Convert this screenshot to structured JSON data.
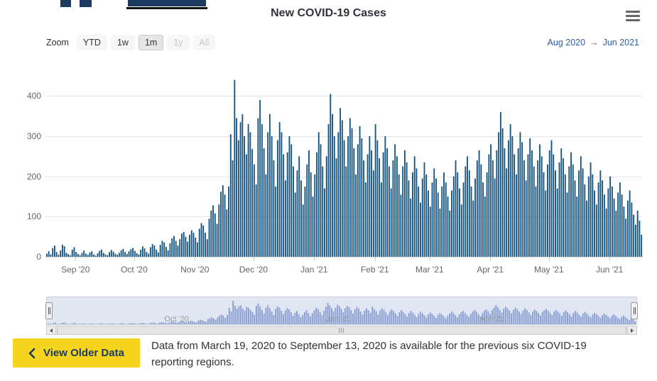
{
  "page": {
    "title": "New COVID-19 Cases"
  },
  "toolbar": {
    "zoom_label": "Zoom",
    "buttons": [
      {
        "label": "YTD",
        "state": "normal"
      },
      {
        "label": "1w",
        "state": "normal"
      },
      {
        "label": "1m",
        "state": "selected"
      },
      {
        "label": "1y",
        "state": "disabled"
      },
      {
        "label": "All",
        "state": "disabled"
      }
    ],
    "range_from": "Aug 2020",
    "range_arrow": "→",
    "range_to": "Jun 2021"
  },
  "icons": {
    "menu": "hamburger-menu",
    "back_chevron": "chevron-left"
  },
  "chart_data": {
    "type": "bar",
    "title": "New COVID-19 Cases",
    "start_date": "2020-08-17",
    "end_date": "2021-06-17",
    "ylim": [
      0,
      480
    ],
    "y_ticks": [
      0,
      100,
      200,
      300,
      400
    ],
    "grid": true,
    "bar_color": "#16537e",
    "navigator_bar_color": "#97a6d6",
    "x_ticks": [
      {
        "label": "Sep '20",
        "index": 15
      },
      {
        "label": "Oct '20",
        "index": 45
      },
      {
        "label": "Nov '20",
        "index": 76
      },
      {
        "label": "Dec '20",
        "index": 106
      },
      {
        "label": "Jan '21",
        "index": 137
      },
      {
        "label": "Feb '21",
        "index": 168
      },
      {
        "label": "Mar '21",
        "index": 196
      },
      {
        "label": "Apr '21",
        "index": 227
      },
      {
        "label": "May '21",
        "index": 257
      },
      {
        "label": "Jun '21",
        "index": 288
      }
    ],
    "navigator_labels": [
      {
        "label": "Oct '20",
        "pos_pct": 22
      },
      {
        "label": "Jan '21",
        "pos_pct": 49.5
      },
      {
        "label": "Apr '21",
        "pos_pct": 75.5
      }
    ],
    "values": [
      8,
      14,
      6,
      22,
      28,
      12,
      5,
      16,
      30,
      26,
      10,
      7,
      4,
      18,
      24,
      12,
      7,
      4,
      10,
      16,
      8,
      5,
      11,
      14,
      6,
      3,
      9,
      15,
      18,
      10,
      6,
      4,
      12,
      17,
      13,
      8,
      5,
      10,
      16,
      20,
      12,
      7,
      14,
      19,
      22,
      15,
      9,
      6,
      18,
      26,
      21,
      12,
      8,
      24,
      32,
      28,
      18,
      11,
      30,
      40,
      36,
      25,
      16,
      34,
      46,
      52,
      40,
      28,
      44,
      58,
      62,
      50,
      38,
      55,
      66,
      60,
      48,
      36,
      70,
      84,
      78,
      60,
      44,
      95,
      115,
      128,
      108,
      82,
      130,
      162,
      178,
      155,
      118,
      175,
      305,
      240,
      440,
      345,
      290,
      335,
      355,
      300,
      255,
      330,
      310,
      268,
      230,
      180,
      345,
      390,
      330,
      270,
      205,
      310,
      355,
      300,
      240,
      175,
      290,
      335,
      310,
      255,
      190,
      260,
      300,
      280,
      225,
      160,
      215,
      250,
      190,
      130,
      175,
      230,
      265,
      210,
      150,
      205,
      260,
      310,
      280,
      225,
      170,
      250,
      330,
      405,
      355,
      300,
      245,
      310,
      370,
      340,
      290,
      225,
      300,
      345,
      320,
      270,
      205,
      280,
      325,
      295,
      240,
      185,
      255,
      300,
      265,
      215,
      330,
      290,
      245,
      185,
      260,
      300,
      270,
      225,
      170,
      240,
      280,
      250,
      205,
      155,
      225,
      265,
      235,
      190,
      145,
      210,
      250,
      220,
      175,
      135,
      195,
      235,
      205,
      165,
      125,
      185,
      220,
      195,
      160,
      120,
      175,
      210,
      185,
      150,
      115,
      165,
      200,
      240,
      210,
      170,
      130,
      185,
      225,
      250,
      215,
      175,
      140,
      195,
      240,
      265,
      230,
      185,
      150,
      210,
      255,
      280,
      240,
      195,
      265,
      310,
      360,
      320,
      270,
      220,
      290,
      330,
      300,
      255,
      205,
      270,
      310,
      285,
      240,
      190,
      255,
      295,
      265,
      225,
      175,
      240,
      280,
      250,
      210,
      165,
      230,
      265,
      290,
      255,
      215,
      170,
      235,
      270,
      245,
      205,
      160,
      225,
      260,
      230,
      190,
      150,
      215,
      250,
      220,
      180,
      140,
      200,
      235,
      205,
      165,
      130,
      185,
      215,
      190,
      155,
      120,
      170,
      200,
      175,
      145,
      115,
      160,
      185,
      155,
      125,
      95,
      140,
      165,
      135,
      105,
      80,
      115,
      90,
      55
    ]
  },
  "footer": {
    "view_older_label": "View Older Data",
    "message": "Data from March 19, 2020 to September 13, 2020 is available for the previous six COVID-19 reporting regions."
  }
}
